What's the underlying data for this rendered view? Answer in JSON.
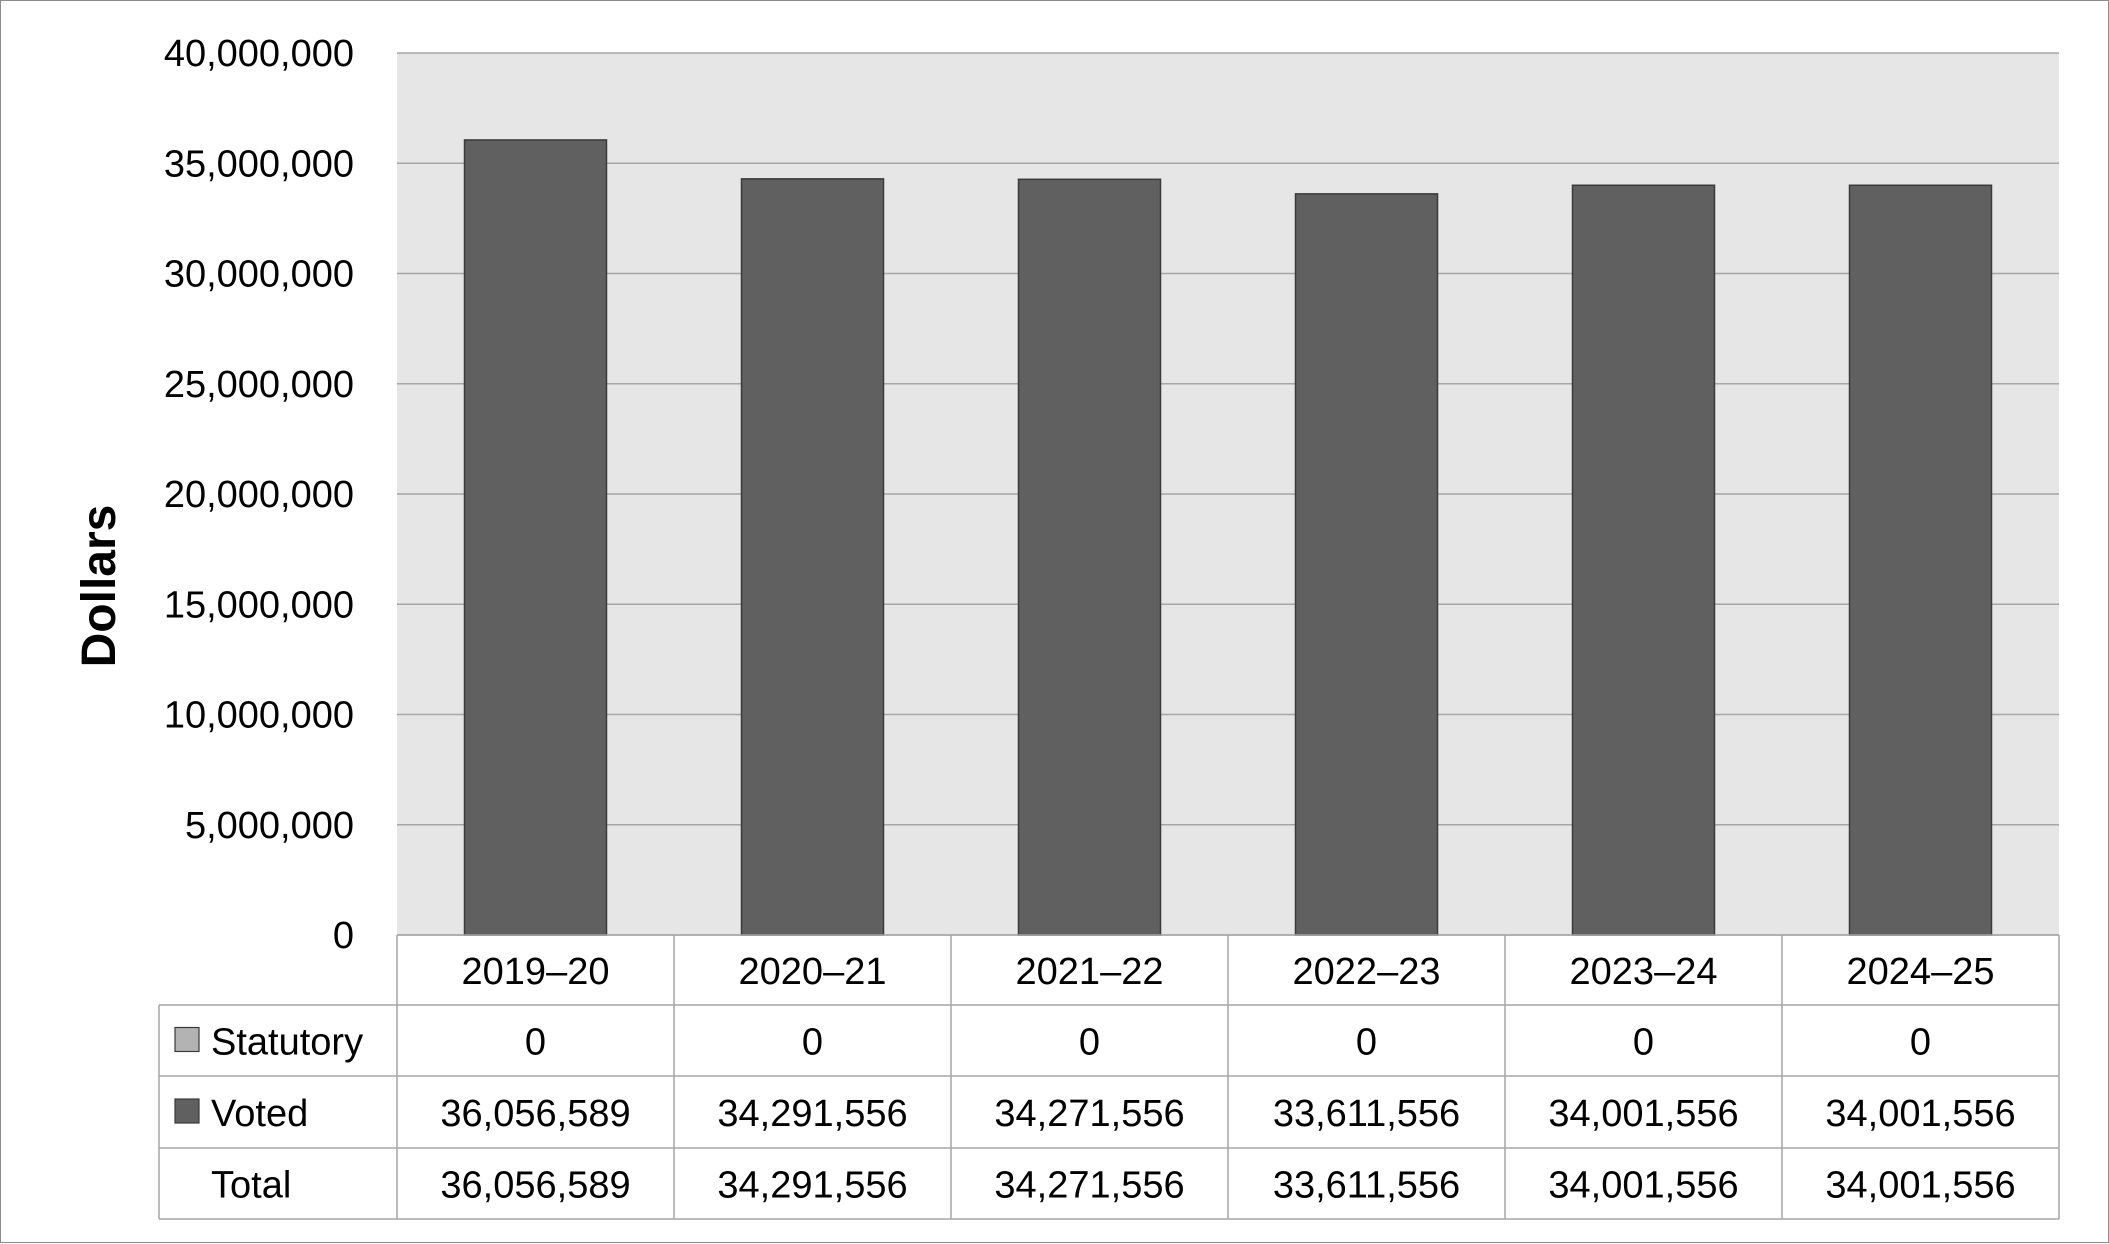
{
  "chart_data": {
    "type": "bar",
    "title": "",
    "xlabel": "",
    "ylabel": "Dollars",
    "ylim": [
      0,
      40000000
    ],
    "yticks": [
      "0",
      "5,000,000",
      "10,000,000",
      "15,000,000",
      "20,000,000",
      "25,000,000",
      "30,000,000",
      "35,000,000",
      "40,000,000"
    ],
    "ytick_values": [
      0,
      5000000,
      10000000,
      15000000,
      20000000,
      25000000,
      30000000,
      35000000,
      40000000
    ],
    "grid": true,
    "categories": [
      "2019–20",
      "2020–21",
      "2021–22",
      "2022–23",
      "2023–24",
      "2024–25"
    ],
    "series": [
      {
        "name": "Statutory",
        "color": "#b3b3b3",
        "values": [
          0,
          0,
          0,
          0,
          0,
          0
        ],
        "labels": [
          "0",
          "0",
          "0",
          "0",
          "0",
          "0"
        ]
      },
      {
        "name": "Voted",
        "color": "#606060",
        "values": [
          36056589,
          34291556,
          34271556,
          33611556,
          34001556,
          34001556
        ],
        "labels": [
          "36,056,589",
          "34,291,556",
          "34,271,556",
          "33,611,556",
          "34,001,556",
          "34,001,556"
        ]
      }
    ],
    "total": {
      "name": "Total",
      "labels": [
        "36,056,589",
        "34,291,556",
        "34,271,556",
        "33,611,556",
        "34,001,556",
        "34,001,556"
      ]
    },
    "plot_background": "#e6e6e6",
    "legend": "data-table"
  }
}
